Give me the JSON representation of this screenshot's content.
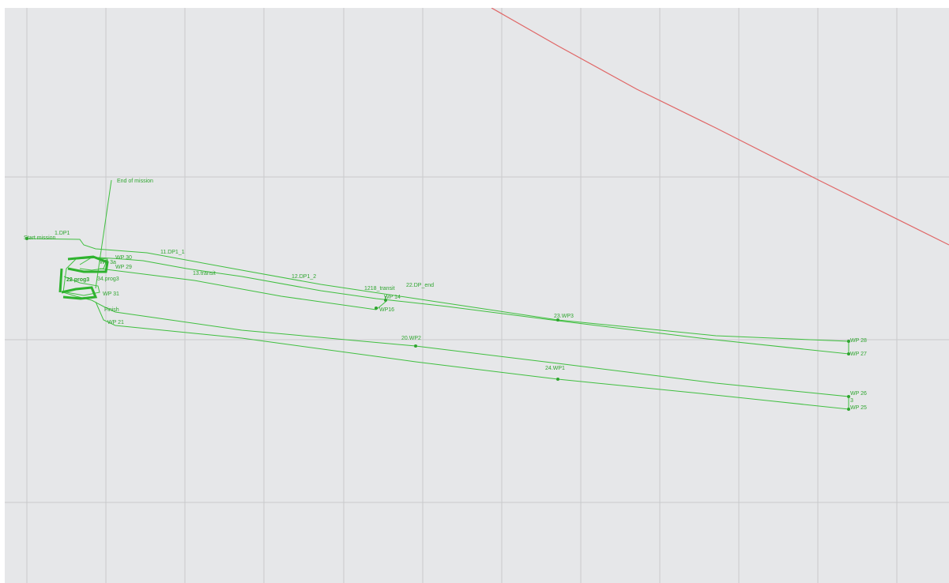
{
  "map": {
    "background": "#e6e7e9",
    "grid_color": "#c9cacc",
    "path_color": "#3fbf3f",
    "boundary_color": "#e06666"
  },
  "labels": {
    "end_of_mission": "End of mission",
    "start_mission": "Start mission",
    "wp_1": "1.DP1",
    "wp_11": "11.DP1_1",
    "wp_3_travel": "13.transit",
    "wp_12": "12.DP1_2",
    "wp_18": "1218_transit",
    "wp_22": "22.DP_end",
    "wp_14": "WP 14",
    "wp_16": "WP16",
    "wp_23": "23.WP3",
    "wp_20": "20.WP2",
    "wp_24": "24.WP1",
    "wp_28": "WP 28",
    "wp_27": "WP 27",
    "wp_26": "WP 26",
    "wp_25": "WP 25",
    "wp_3": "3",
    "wp_29": "WP 29",
    "wp_21": "WP 21",
    "wp_finish": "Finish",
    "wp_22_cluster": "22 prog3",
    "wp_34_cluster": "34.prog3",
    "cluster_a": "WP 3a",
    "cluster_b": "WP 30",
    "cluster_c": "WP 31"
  }
}
